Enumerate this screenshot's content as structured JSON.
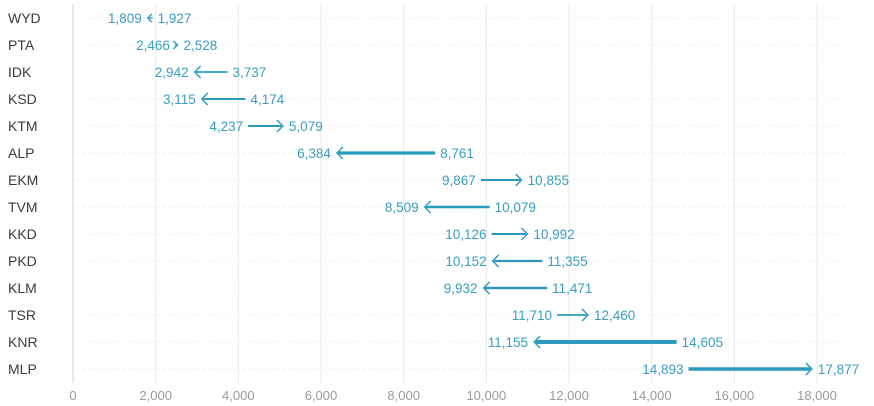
{
  "chart_data": {
    "type": "arrow",
    "categories": [
      "WYD",
      "PTA",
      "IDK",
      "KSD",
      "KTM",
      "ALP",
      "EKM",
      "TVM",
      "KKD",
      "PKD",
      "KLM",
      "TSR",
      "KNR",
      "MLP"
    ],
    "series": [
      {
        "values": [
          1927,
          2466,
          3737,
          4174,
          4237,
          8761,
          9867,
          10079,
          10126,
          11355,
          11471,
          11710,
          14605,
          14893
        ]
      },
      {
        "values": [
          1809,
          2528,
          2942,
          3115,
          5079,
          6384,
          10855,
          8509,
          10992,
          10152,
          9932,
          12460,
          11155,
          17877
        ]
      }
    ],
    "labels_from": [
      "1,927",
      "2,466",
      "3,737",
      "4,174",
      "4,237",
      "8,761",
      "9,867",
      "10,079",
      "10,126",
      "11,355",
      "11,471",
      "11,710",
      "14,605",
      "14,893"
    ],
    "labels_to": [
      "1,809",
      "2,528",
      "2,942",
      "3,115",
      "5,079",
      "6,384",
      "10,855",
      "8,509",
      "10,992",
      "10,152",
      "9,932",
      "12,460",
      "11,155",
      "17,877"
    ],
    "xlim": [
      0,
      18000
    ],
    "xticks": [
      0,
      2000,
      4000,
      6000,
      8000,
      10000,
      12000,
      14000,
      16000,
      18000
    ],
    "xtick_labels": [
      "0",
      "2,000",
      "4,000",
      "6,000",
      "8,000",
      "10,000",
      "12,000",
      "14,000",
      "16,000",
      "18,000"
    ],
    "grid": true,
    "arrow_color": "#2a9bbf",
    "label_color": "#3a9ec0"
  }
}
